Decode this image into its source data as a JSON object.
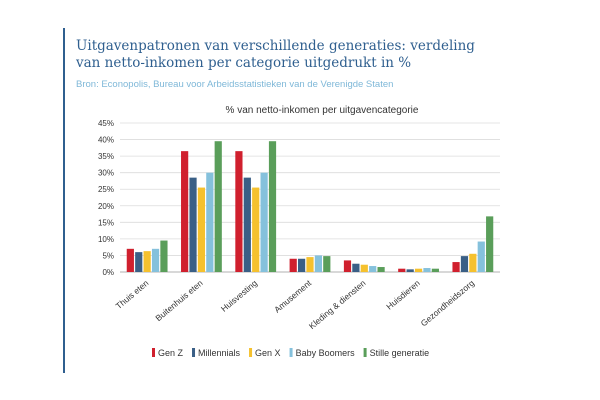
{
  "header": {
    "title_line1": "Uitgavenpatronen van verschillende generaties: verdeling",
    "title_line2": "van netto-inkomen per categorie uitgedrukt in %",
    "source": "Bron: Econopolis, Bureau voor Arbeidsstatistieken van de Verenigde Staten"
  },
  "colors": {
    "accent": "#2f5f8f",
    "source_text": "#7fb8d8"
  },
  "chart_data": {
    "type": "bar",
    "title": "% van netto-inkomen per uitgavencategorie",
    "xlabel": "",
    "ylabel": "",
    "ylim": [
      0,
      45
    ],
    "yticks": [
      "0%",
      "5%",
      "10%",
      "15%",
      "20%",
      "25%",
      "30%",
      "35%",
      "40%",
      "45%"
    ],
    "grid": true,
    "legend_position": "bottom",
    "categories": [
      "Thuis eten",
      "Buitenhuis eten",
      "Huisvesting",
      "Amusement",
      "Kleding & diensten",
      "Huisdieren",
      "Gezondheidszorg"
    ],
    "series": [
      {
        "name": "Gen Z",
        "color": "#d0202e",
        "values": [
          7.0,
          36.5,
          36.5,
          4.0,
          3.5,
          1.0,
          3.0
        ]
      },
      {
        "name": "Millennials",
        "color": "#3a5f86",
        "values": [
          6.0,
          28.5,
          28.5,
          4.0,
          2.5,
          0.8,
          4.8
        ]
      },
      {
        "name": "Gen X",
        "color": "#f5c12e",
        "values": [
          6.3,
          25.5,
          25.5,
          4.5,
          2.2,
          1.0,
          5.5
        ]
      },
      {
        "name": "Baby Boomers",
        "color": "#85c1dc",
        "values": [
          7.0,
          30.0,
          30.0,
          5.0,
          1.8,
          1.2,
          9.2
        ]
      },
      {
        "name": "Stille generatie",
        "color": "#5a9e5a",
        "values": [
          9.5,
          39.5,
          39.5,
          4.8,
          1.5,
          1.0,
          16.8
        ]
      }
    ]
  }
}
